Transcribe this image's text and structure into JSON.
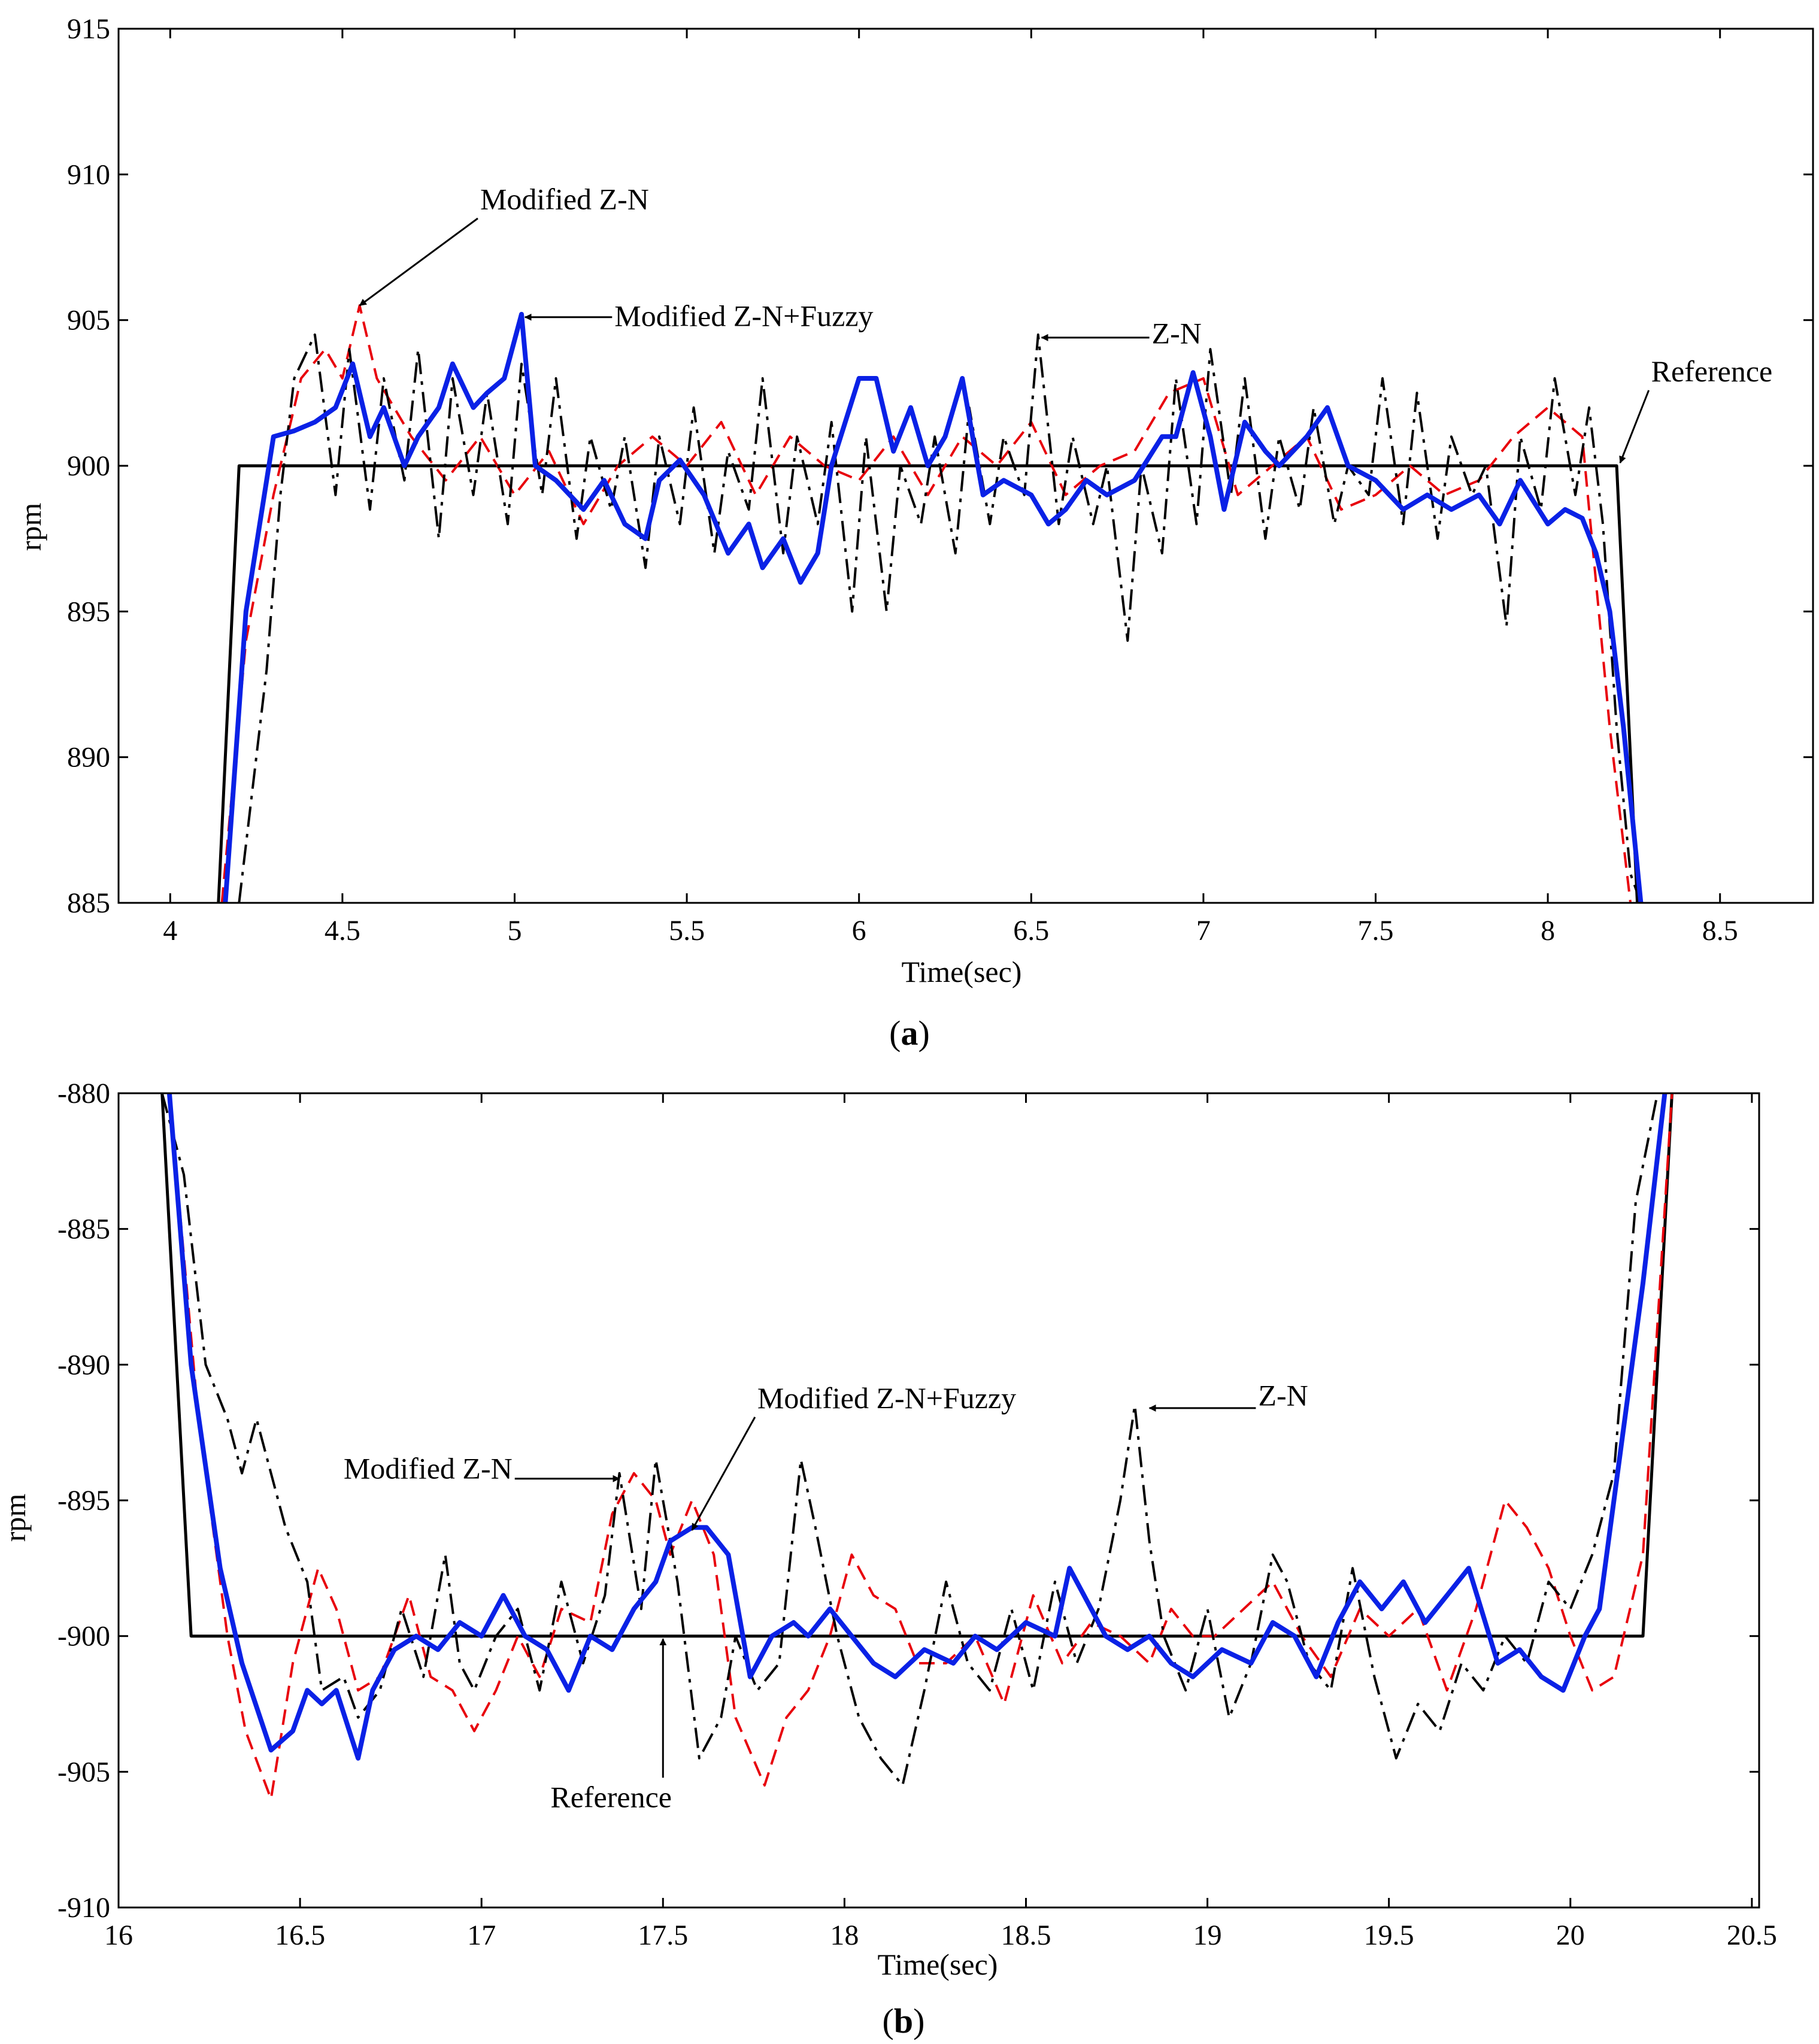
{
  "chart_data": [
    {
      "id": "a",
      "type": "line",
      "caption_letter": "a",
      "caption_open": "(",
      "caption_close": ")",
      "xlabel": "Time(sec)",
      "ylabel": "rpm",
      "xlim": [
        3.85,
        8.77
      ],
      "ylim": [
        885,
        915
      ],
      "xticks": [
        4,
        4.5,
        5,
        5.5,
        6,
        6.5,
        7,
        7.5,
        8,
        8.5
      ],
      "yticks": [
        885,
        890,
        895,
        900,
        905,
        910,
        915
      ],
      "grid": false,
      "series": [
        {
          "name": "Reference",
          "color": "#000000",
          "style": "solid",
          "width": 5,
          "x": [
            4.14,
            4.2,
            8.2,
            8.26
          ],
          "y": [
            885,
            900,
            900,
            885
          ]
        },
        {
          "name": "Modified Z-N",
          "color": "#e8000b",
          "style": "dashed",
          "width": 4,
          "x": [
            4.15,
            4.22,
            4.3,
            4.38,
            4.45,
            4.5,
            4.55,
            4.6,
            4.7,
            4.8,
            4.9,
            5.0,
            5.1,
            5.2,
            5.3,
            5.4,
            5.5,
            5.6,
            5.7,
            5.8,
            5.9,
            6.0,
            6.1,
            6.2,
            6.3,
            6.4,
            6.5,
            6.6,
            6.7,
            6.8,
            6.9,
            7.0,
            7.1,
            7.2,
            7.3,
            7.4,
            7.5,
            7.6,
            7.7,
            7.8,
            7.9,
            8.0,
            8.1,
            8.18,
            8.24
          ],
          "y": [
            885,
            894,
            899,
            903,
            904,
            903,
            905.5,
            903,
            901,
            899.5,
            901,
            899,
            900.5,
            898,
            900,
            901,
            900,
            901.5,
            899,
            901,
            900,
            899.5,
            901,
            899,
            901,
            900,
            901.5,
            899,
            900,
            900.5,
            902.5,
            903,
            899,
            900,
            901,
            898.5,
            899,
            900,
            899,
            899.5,
            901,
            902,
            901,
            891,
            885
          ]
        },
        {
          "name": "Z-N",
          "color": "#000000",
          "style": "dashdot",
          "width": 4,
          "x": [
            4.2,
            4.28,
            4.32,
            4.36,
            4.42,
            4.48,
            4.52,
            4.58,
            4.62,
            4.68,
            4.72,
            4.78,
            4.82,
            4.88,
            4.92,
            4.98,
            5.02,
            5.08,
            5.12,
            5.18,
            5.22,
            5.28,
            5.32,
            5.38,
            5.42,
            5.48,
            5.52,
            5.58,
            5.62,
            5.68,
            5.72,
            5.78,
            5.82,
            5.88,
            5.92,
            5.98,
            6.02,
            6.08,
            6.12,
            6.18,
            6.22,
            6.28,
            6.32,
            6.38,
            6.42,
            6.48,
            6.52,
            6.58,
            6.62,
            6.68,
            6.72,
            6.78,
            6.82,
            6.88,
            6.92,
            6.98,
            7.02,
            7.08,
            7.12,
            7.18,
            7.22,
            7.28,
            7.32,
            7.38,
            7.42,
            7.48,
            7.52,
            7.58,
            7.62,
            7.68,
            7.72,
            7.78,
            7.82,
            7.88,
            7.92,
            7.98,
            8.02,
            8.08,
            8.12,
            8.16,
            8.2,
            8.24,
            8.27
          ],
          "y": [
            885,
            893,
            899,
            903,
            904.5,
            899,
            904,
            898.5,
            903,
            899.5,
            904,
            897.5,
            903,
            899,
            902.5,
            898,
            903.5,
            899,
            903,
            897.5,
            901,
            898.5,
            901,
            896.5,
            901,
            898,
            902,
            897,
            900.5,
            898.5,
            903,
            897,
            901,
            898,
            901.5,
            895,
            901,
            895,
            900,
            898,
            901,
            897,
            902,
            898,
            901,
            899,
            904.5,
            898,
            901,
            898,
            900,
            894,
            900,
            897,
            903,
            898,
            904,
            899,
            903,
            897.5,
            901,
            898.5,
            902,
            898,
            900,
            899,
            903,
            898,
            902.5,
            897.5,
            901,
            899,
            900,
            894.5,
            901,
            898.5,
            903,
            899,
            902,
            898,
            891,
            886,
            885
          ]
        },
        {
          "name": "Modified Z-N+Fuzzy",
          "color": "#0a21e6",
          "style": "solid",
          "width": 8,
          "x": [
            4.16,
            4.22,
            4.3,
            4.36,
            4.42,
            4.48,
            4.53,
            4.58,
            4.62,
            4.68,
            4.72,
            4.78,
            4.82,
            4.88,
            4.92,
            4.97,
            5.02,
            5.06,
            5.12,
            5.2,
            5.26,
            5.32,
            5.38,
            5.42,
            5.48,
            5.55,
            5.62,
            5.68,
            5.72,
            5.78,
            5.83,
            5.88,
            5.92,
            6.0,
            6.05,
            6.1,
            6.15,
            6.2,
            6.25,
            6.3,
            6.36,
            6.42,
            6.5,
            6.55,
            6.6,
            6.66,
            6.72,
            6.8,
            6.88,
            6.92,
            6.97,
            7.02,
            7.06,
            7.12,
            7.18,
            7.22,
            7.3,
            7.36,
            7.42,
            7.5,
            7.58,
            7.65,
            7.72,
            7.8,
            7.86,
            7.92,
            8.0,
            8.05,
            8.1,
            8.14,
            8.18,
            8.22,
            8.27
          ],
          "y": [
            885,
            895,
            901,
            901.2,
            901.5,
            902,
            903.5,
            901,
            902,
            900,
            901,
            902,
            903.5,
            902,
            902.5,
            903,
            905.2,
            900,
            899.5,
            898.5,
            899.5,
            898,
            897.5,
            899.5,
            900.2,
            899,
            897,
            898,
            896.5,
            897.5,
            896,
            897,
            900,
            903,
            903,
            900.5,
            902,
            900,
            901,
            903,
            899,
            899.5,
            899,
            898,
            898.5,
            899.5,
            899,
            899.5,
            901,
            901,
            903.2,
            901,
            898.5,
            901.5,
            900.5,
            900,
            901,
            902,
            900,
            899.5,
            898.5,
            899,
            898.5,
            899,
            898,
            899.5,
            898,
            898.5,
            898.2,
            897,
            895,
            891,
            885
          ]
        }
      ],
      "annotations": [
        {
          "text": "Modified  Z-N",
          "tx": 4.9,
          "ty": 908.8,
          "points_to": [
            4.55,
            905.5
          ]
        },
        {
          "text": "Modified  Z-N+Fuzzy",
          "tx": 5.29,
          "ty": 904.8,
          "points_to": [
            5.03,
            905.1
          ]
        },
        {
          "text": "Z-N",
          "tx": 6.85,
          "ty": 904.2,
          "points_to": [
            6.53,
            904.4
          ]
        },
        {
          "text": "Reference",
          "tx": 8.3,
          "ty": 902.9,
          "points_to": [
            8.21,
            900.1
          ]
        }
      ]
    },
    {
      "id": "b",
      "type": "line",
      "caption_letter": "b",
      "caption_open": "(",
      "caption_close": ")",
      "xlabel": "Time(sec)",
      "ylabel": "rpm",
      "xlim": [
        16.0,
        20.52
      ],
      "ylim": [
        -910,
        -880
      ],
      "xticks": [
        16,
        16.5,
        17,
        17.5,
        18,
        18.5,
        19,
        19.5,
        20,
        20.5
      ],
      "yticks": [
        -910,
        -905,
        -900,
        -895,
        -890,
        -885,
        -880
      ],
      "grid": false,
      "series": [
        {
          "name": "Reference",
          "color": "#000000",
          "style": "solid",
          "width": 5,
          "x": [
            16.12,
            16.2,
            20.2,
            20.28
          ],
          "y": [
            -880,
            -900,
            -900,
            -880
          ]
        },
        {
          "name": "Modified Z-N",
          "color": "#e8000b",
          "style": "dashed",
          "width": 4,
          "x": [
            16.14,
            16.22,
            16.3,
            16.35,
            16.42,
            16.48,
            16.55,
            16.6,
            16.66,
            16.72,
            16.8,
            16.86,
            16.92,
            16.98,
            17.04,
            17.1,
            17.16,
            17.22,
            17.3,
            17.36,
            17.42,
            17.48,
            17.52,
            17.58,
            17.64,
            17.7,
            17.78,
            17.84,
            17.9,
            17.96,
            18.02,
            18.08,
            18.14,
            18.2,
            18.28,
            18.36,
            18.44,
            18.52,
            18.6,
            18.68,
            18.76,
            18.84,
            18.9,
            18.96,
            19.02,
            19.1,
            19.18,
            19.26,
            19.34,
            19.42,
            19.5,
            19.58,
            19.66,
            19.74,
            19.82,
            19.88,
            19.94,
            20.0,
            20.06,
            20.12,
            20.2,
            20.28
          ],
          "y": [
            -880,
            -892,
            -900,
            -903.5,
            -906,
            -901,
            -897.5,
            -899,
            -902,
            -901.5,
            -898.5,
            -901.5,
            -902,
            -903.5,
            -902,
            -900,
            -901.5,
            -899,
            -899.5,
            -895.5,
            -894,
            -895,
            -897,
            -895,
            -897,
            -903,
            -905.5,
            -903,
            -902,
            -900,
            -897,
            -898.5,
            -899,
            -901,
            -901,
            -900,
            -902.5,
            -898.5,
            -901,
            -899.5,
            -900,
            -901,
            -899,
            -900,
            -900,
            -899,
            -898,
            -900,
            -901.5,
            -899,
            -900,
            -899,
            -902,
            -899,
            -895,
            -896,
            -897.5,
            -900,
            -902,
            -901.5,
            -897,
            -880
          ]
        },
        {
          "name": "Z-N",
          "color": "#000000",
          "style": "dashdot",
          "width": 4,
          "x": [
            16.12,
            16.18,
            16.24,
            16.3,
            16.34,
            16.38,
            16.42,
            16.46,
            16.52,
            16.56,
            16.62,
            16.66,
            16.72,
            16.78,
            16.84,
            16.9,
            16.94,
            16.98,
            17.04,
            17.1,
            17.16,
            17.22,
            17.28,
            17.34,
            17.38,
            17.44,
            17.48,
            17.54,
            17.6,
            17.66,
            17.7,
            17.76,
            17.82,
            17.88,
            17.92,
            17.98,
            18.04,
            18.1,
            18.16,
            18.22,
            18.28,
            18.34,
            18.4,
            18.46,
            18.52,
            18.58,
            18.64,
            18.7,
            18.76,
            18.8,
            18.84,
            18.88,
            18.94,
            19.0,
            19.06,
            19.12,
            19.18,
            19.22,
            19.28,
            19.34,
            19.4,
            19.46,
            19.52,
            19.58,
            19.64,
            19.7,
            19.76,
            19.82,
            19.88,
            19.94,
            20.0,
            20.06,
            20.12,
            20.18,
            20.24
          ],
          "y": [
            -880,
            -883,
            -890,
            -892,
            -894,
            -892,
            -894,
            -896,
            -898,
            -902,
            -901.5,
            -903,
            -902,
            -899,
            -901.5,
            -897,
            -901,
            -902,
            -900,
            -899,
            -902,
            -898,
            -901,
            -898.5,
            -894,
            -899,
            -893.5,
            -898,
            -904.5,
            -903,
            -900,
            -902,
            -901,
            -893.5,
            -896,
            -900,
            -903,
            -904.5,
            -905.5,
            -902,
            -898,
            -901,
            -902,
            -899,
            -902,
            -898,
            -901,
            -899,
            -895,
            -891.5,
            -896.5,
            -900,
            -902,
            -899,
            -903,
            -901,
            -897,
            -898,
            -901,
            -902,
            -897.5,
            -901.5,
            -904.5,
            -902.5,
            -903.5,
            -901,
            -902,
            -900,
            -901,
            -898,
            -899,
            -897,
            -894,
            -884,
            -880
          ]
        },
        {
          "name": "Modified Z-N+Fuzzy",
          "color": "#0a21e6",
          "style": "solid",
          "width": 8,
          "x": [
            16.14,
            16.2,
            16.28,
            16.34,
            16.42,
            16.48,
            16.52,
            16.56,
            16.6,
            16.66,
            16.7,
            16.76,
            16.82,
            16.88,
            16.94,
            17.0,
            17.06,
            17.12,
            17.18,
            17.24,
            17.3,
            17.36,
            17.42,
            17.48,
            17.52,
            17.58,
            17.62,
            17.68,
            17.74,
            17.8,
            17.86,
            17.9,
            17.96,
            18.02,
            18.08,
            18.14,
            18.22,
            18.3,
            18.36,
            18.42,
            18.5,
            18.58,
            18.62,
            18.66,
            18.72,
            18.78,
            18.84,
            18.9,
            18.96,
            19.04,
            19.12,
            19.18,
            19.24,
            19.3,
            19.36,
            19.42,
            19.48,
            19.54,
            19.6,
            19.66,
            19.72,
            19.8,
            19.86,
            19.92,
            19.98,
            20.04,
            20.08,
            20.14,
            20.2,
            20.26
          ],
          "y": [
            -880,
            -890,
            -897.5,
            -901,
            -904.2,
            -903.5,
            -902,
            -902.5,
            -902,
            -904.5,
            -902,
            -900.5,
            -900,
            -900.5,
            -899.5,
            -900,
            -898.5,
            -900,
            -900.5,
            -902,
            -900,
            -900.5,
            -899,
            -898,
            -896.5,
            -896,
            -896,
            -897,
            -901.5,
            -900,
            -899.5,
            -900,
            -899,
            -900,
            -901,
            -901.5,
            -900.5,
            -901,
            -900,
            -900.5,
            -899.5,
            -900,
            -897.5,
            -898.5,
            -900,
            -900.5,
            -900,
            -901,
            -901.5,
            -900.5,
            -901,
            -899.5,
            -900,
            -901.5,
            -899.5,
            -898,
            -899,
            -898,
            -899.5,
            -898.5,
            -897.5,
            -901,
            -900.5,
            -901.5,
            -902,
            -900,
            -899,
            -893,
            -887,
            -880
          ]
        }
      ],
      "annotations": [
        {
          "text": "Modified  Z-N",
          "tx": 16.62,
          "ty": -894.2,
          "points_to": [
            17.38,
            -894.2
          ]
        },
        {
          "text": "Modified  Z-N+Fuzzy",
          "tx": 17.76,
          "ty": -891.6,
          "points_to": [
            17.58,
            -896.1
          ]
        },
        {
          "text": "Z-N",
          "tx": 19.14,
          "ty": -891.5,
          "points_to": [
            18.84,
            -891.6
          ]
        },
        {
          "text": "Reference",
          "tx": 17.19,
          "ty": -906.3,
          "points_to": [
            17.5,
            -900.1
          ]
        }
      ]
    }
  ]
}
